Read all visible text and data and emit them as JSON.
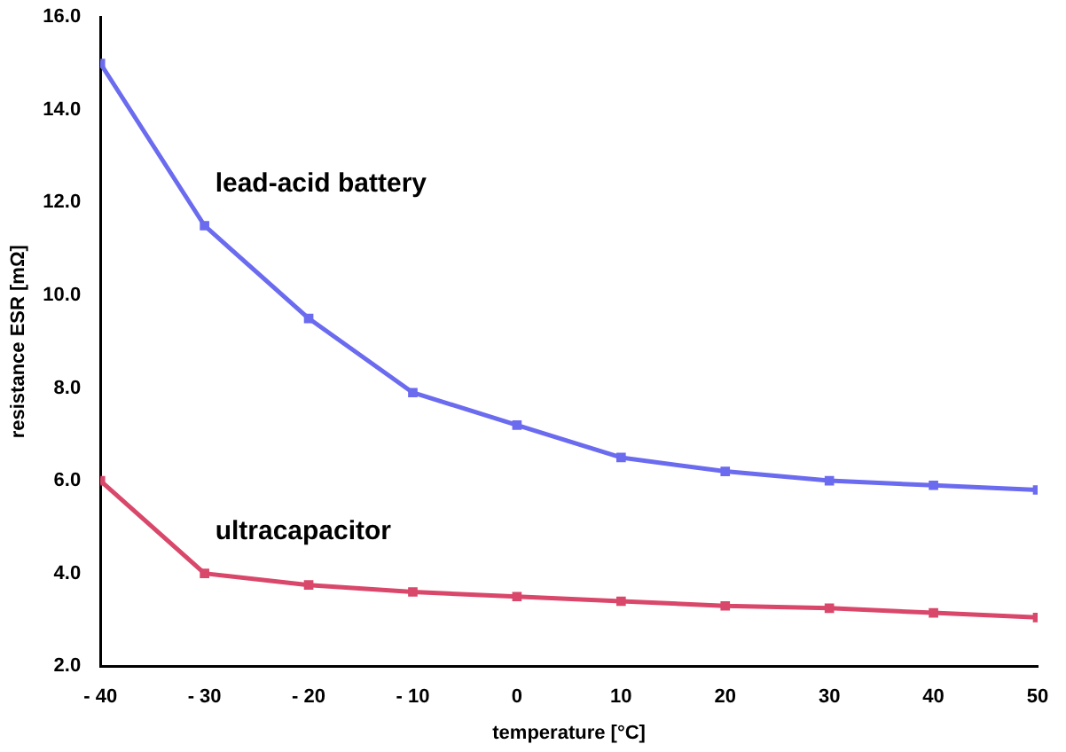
{
  "chart_data": {
    "type": "line",
    "xlabel": "temperature [°C]",
    "ylabel": "resistance ESR [mΩ]",
    "x": [
      -40,
      -30,
      -20,
      -10,
      0,
      10,
      20,
      30,
      40,
      50
    ],
    "series": [
      {
        "name": "lead-acid battery",
        "color": "#6b6bf0",
        "values": [
          15.0,
          11.5,
          9.5,
          7.9,
          7.2,
          6.5,
          6.2,
          6.0,
          5.9,
          5.8
        ]
      },
      {
        "name": "ultracapacitor",
        "color": "#d9476a",
        "values": [
          6.0,
          4.0,
          3.75,
          3.6,
          3.5,
          3.4,
          3.3,
          3.25,
          3.15,
          3.05
        ]
      }
    ],
    "xlim": [
      -40,
      50
    ],
    "xticks": [
      {
        "value": -40,
        "label": "- 40"
      },
      {
        "value": -30,
        "label": "- 30"
      },
      {
        "value": -20,
        "label": "- 20"
      },
      {
        "value": -10,
        "label": "- 10"
      },
      0,
      10,
      20,
      30,
      40,
      50
    ],
    "ylim": [
      2,
      16
    ],
    "yticks": [
      {
        "value": 2,
        "label": "2.0"
      },
      {
        "value": 4,
        "label": "4.0"
      },
      {
        "value": 6,
        "label": "6.0"
      },
      {
        "value": 8,
        "label": "8.0"
      },
      {
        "value": 10,
        "label": "10.0"
      },
      {
        "value": 12,
        "label": "12.0"
      },
      {
        "value": 14,
        "label": "14.0"
      },
      {
        "value": 16,
        "label": "16.0"
      }
    ],
    "grid": false,
    "legend": false,
    "marker": "square",
    "line_style": "solid"
  }
}
